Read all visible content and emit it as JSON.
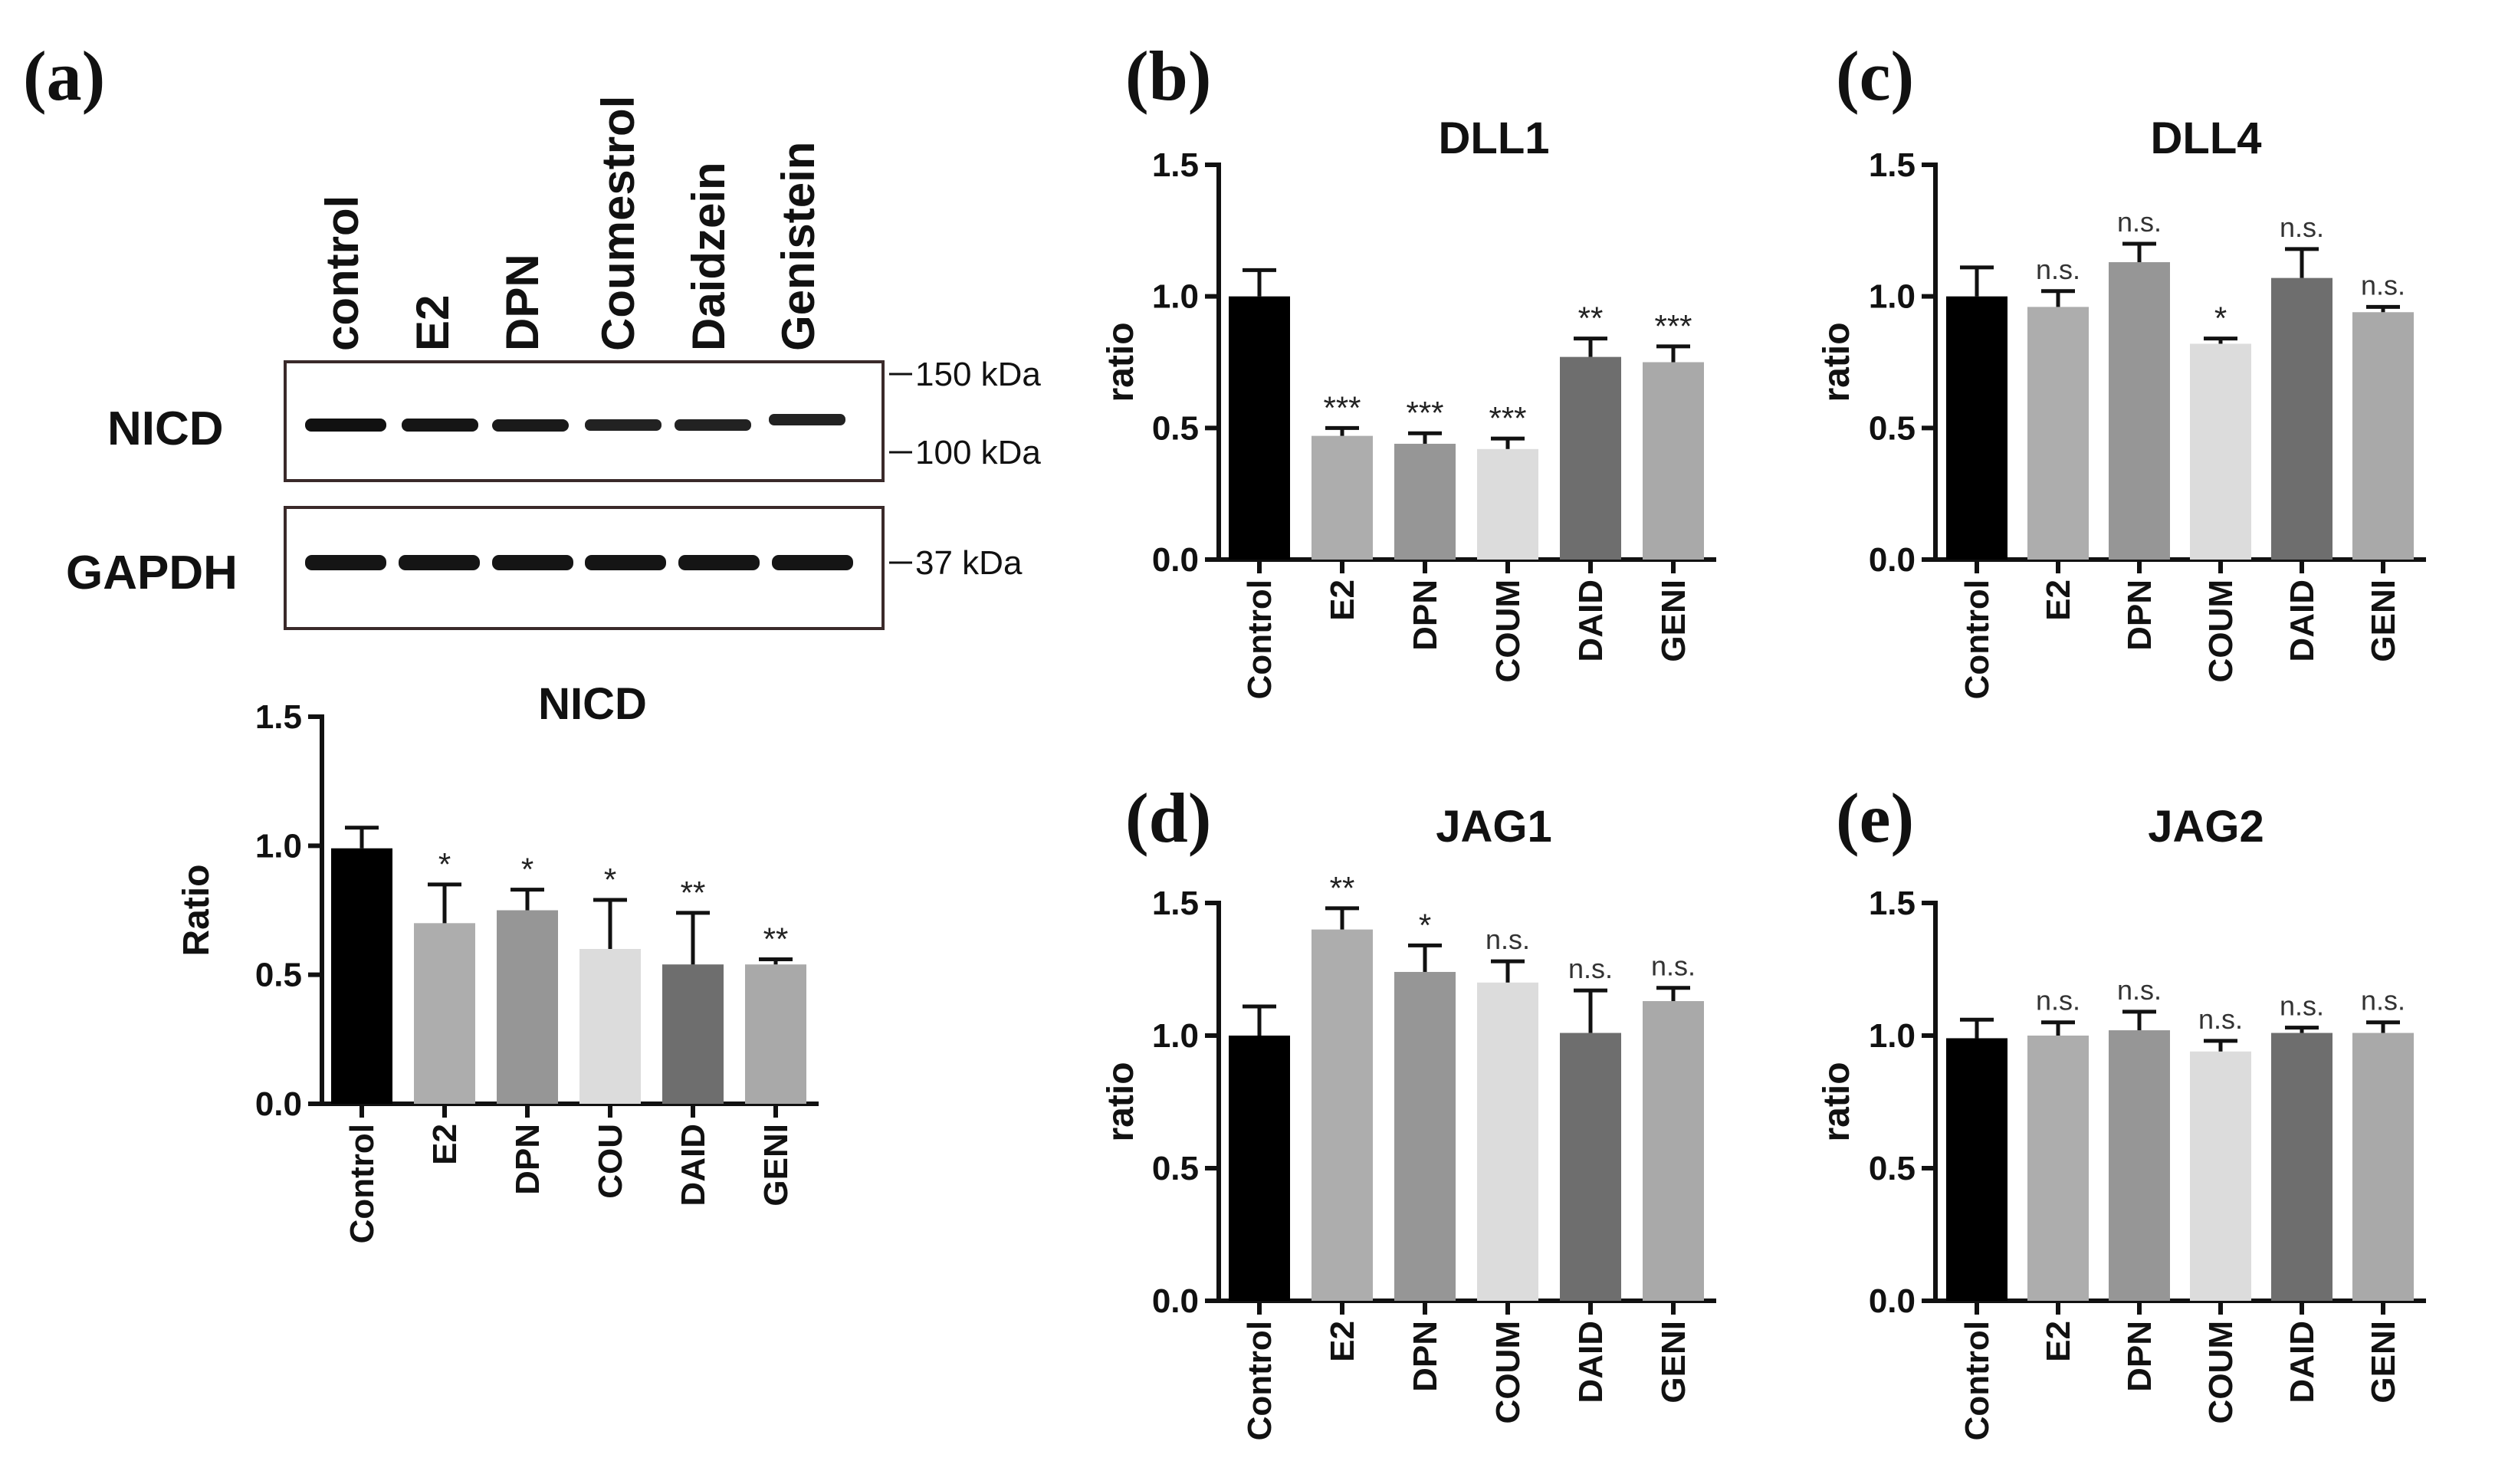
{
  "figure": {
    "panel_labels": [
      "(a)",
      "(b)",
      "(c)",
      "(d)",
      "(e)"
    ],
    "western_blot": {
      "lanes": [
        "control",
        "E2",
        "DPN",
        "Coumestrol",
        "Daidzein",
        "Genistein"
      ],
      "rows": [
        "NICD",
        "GAPDH"
      ],
      "markers": [
        "150 kDa",
        "100 kDa",
        "37 kDa"
      ]
    }
  },
  "colors": {
    "Control": "#000000",
    "E2": "#adadad",
    "DPN": "#969696",
    "COU": "#dcdcdc",
    "DAID": "#6e6e6e",
    "GENI": "#a9a9a9"
  },
  "chart_data": [
    {
      "type": "bar",
      "panel": "(a)",
      "title": "NICD",
      "ylabel": "Ratio",
      "xlabel": "",
      "ylim": [
        0,
        1.5
      ],
      "yticks": [
        "0.0",
        "0.5",
        "1.0",
        "1.5"
      ],
      "categories": [
        "Control",
        "E2",
        "DPN",
        "COU",
        "DAID",
        "GENI"
      ],
      "values": [
        0.99,
        0.7,
        0.75,
        0.6,
        0.54,
        0.54
      ],
      "errors": [
        0.08,
        0.15,
        0.08,
        0.19,
        0.2,
        0.02
      ],
      "significance": [
        "",
        "*",
        "*",
        "*",
        "**",
        "**"
      ]
    },
    {
      "type": "bar",
      "panel": "(b)",
      "title": "DLL1",
      "ylabel": "ratio",
      "xlabel": "",
      "ylim": [
        0,
        1.5
      ],
      "yticks": [
        "0.0",
        "0.5",
        "1.0",
        "1.5"
      ],
      "categories": [
        "Control",
        "E2",
        "DPN",
        "COUM",
        "DAID",
        "GENI"
      ],
      "values": [
        1.0,
        0.47,
        0.44,
        0.42,
        0.77,
        0.75
      ],
      "errors": [
        0.1,
        0.03,
        0.04,
        0.04,
        0.07,
        0.06
      ],
      "significance": [
        "",
        "***",
        "***",
        "***",
        "**",
        "***"
      ]
    },
    {
      "type": "bar",
      "panel": "(c)",
      "title": "DLL4",
      "ylabel": "ratio",
      "xlabel": "",
      "ylim": [
        0,
        1.5
      ],
      "yticks": [
        "0.0",
        "0.5",
        "1.0",
        "1.5"
      ],
      "categories": [
        "Control",
        "E2",
        "DPN",
        "COUM",
        "DAID",
        "GENI"
      ],
      "values": [
        1.0,
        0.96,
        1.13,
        0.82,
        1.07,
        0.94
      ],
      "errors": [
        0.11,
        0.06,
        0.07,
        0.02,
        0.11,
        0.02
      ],
      "significance": [
        "",
        "n.s.",
        "n.s.",
        "*",
        "n.s.",
        "n.s."
      ]
    },
    {
      "type": "bar",
      "panel": "(d)",
      "title": "JAG1",
      "ylabel": "ratio",
      "xlabel": "",
      "ylim": [
        0,
        1.5
      ],
      "yticks": [
        "0.0",
        "0.5",
        "1.0",
        "1.5"
      ],
      "categories": [
        "Control",
        "E2",
        "DPN",
        "COUM",
        "DAID",
        "GENI"
      ],
      "values": [
        1.0,
        1.4,
        1.24,
        1.2,
        1.01,
        1.13
      ],
      "errors": [
        0.11,
        0.08,
        0.1,
        0.08,
        0.16,
        0.05
      ],
      "significance": [
        "",
        "**",
        "*",
        "n.s.",
        "n.s.",
        "n.s."
      ]
    },
    {
      "type": "bar",
      "panel": "(e)",
      "title": "JAG2",
      "ylabel": "ratio",
      "xlabel": "",
      "ylim": [
        0,
        1.5
      ],
      "yticks": [
        "0.0",
        "0.5",
        "1.0",
        "1.5"
      ],
      "categories": [
        "Control",
        "E2",
        "DPN",
        "COUM",
        "DAID",
        "GENI"
      ],
      "values": [
        0.99,
        1.0,
        1.02,
        0.94,
        1.01,
        1.01
      ],
      "errors": [
        0.07,
        0.05,
        0.07,
        0.04,
        0.02,
        0.04
      ],
      "significance": [
        "",
        "n.s.",
        "n.s.",
        "n.s.",
        "n.s.",
        "n.s."
      ]
    }
  ]
}
